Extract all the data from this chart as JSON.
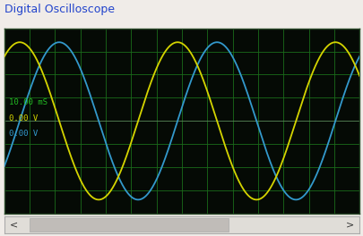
{
  "title": "Digital Oscilloscope",
  "bg_color": "#050a05",
  "outer_bg": "#f0ece8",
  "grid_color": "#1a6b1a",
  "yellow_color": "#d4d400",
  "blue_color": "#3399cc",
  "zero_line_color": "#999999",
  "amplitude": 0.85,
  "phase_shift_deg": 90,
  "num_cycles": 2.25,
  "yellow_phase_deg": 55,
  "annotation_time": "10.00 mS",
  "annotation_ch1": "0.00 V",
  "annotation_ch2": "0.00 V",
  "annotation_color_time": "#22bb22",
  "annotation_color_ch1": "#d4d400",
  "annotation_color_ch2": "#3399cc",
  "grid_rows": 8,
  "grid_cols": 14,
  "title_fontsize": 9,
  "annotation_fontsize": 6.5,
  "scrollbar_bg": "#e0ddd8",
  "scrollbar_thumb": "#c0bcb8",
  "figsize": [
    4.06,
    2.64
  ],
  "dpi": 100
}
